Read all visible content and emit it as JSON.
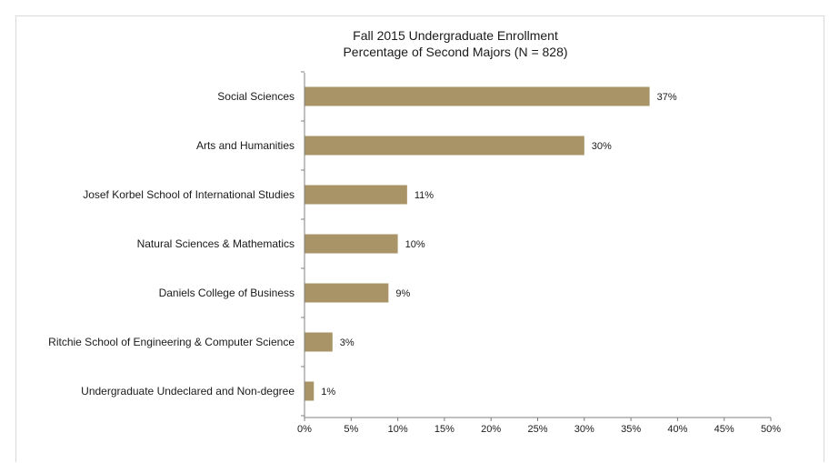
{
  "chart_data": {
    "type": "bar",
    "orientation": "horizontal",
    "title": "Fall 2015 Undergraduate Enrollment",
    "subtitle": "Percentage of Second Majors (N = 828)",
    "categories": [
      "Social Sciences",
      "Arts and Humanities",
      "Josef Korbel School of International Studies",
      "Natural Sciences & Mathematics",
      "Daniels College of Business",
      "Ritchie School of Engineering & Computer Science",
      "Undergraduate Undeclared and Non-degree"
    ],
    "values": [
      37,
      30,
      11,
      10,
      9,
      3,
      1
    ],
    "data_labels": [
      "37%",
      "30%",
      "11%",
      "10%",
      "9%",
      "3%",
      "1%"
    ],
    "xlabel": "",
    "ylabel": "",
    "xlim": [
      0,
      50
    ],
    "x_ticks": [
      0,
      5,
      10,
      15,
      20,
      25,
      30,
      35,
      40,
      45,
      50
    ],
    "x_tick_labels": [
      "0%",
      "5%",
      "10%",
      "15%",
      "20%",
      "25%",
      "30%",
      "35%",
      "40%",
      "45%",
      "50%"
    ],
    "grid": false,
    "legend": "none",
    "colors": {
      "bar": "#a89467",
      "axis": "#808080",
      "text": "#1a1a1a",
      "frame": "#d9d9d9"
    }
  }
}
